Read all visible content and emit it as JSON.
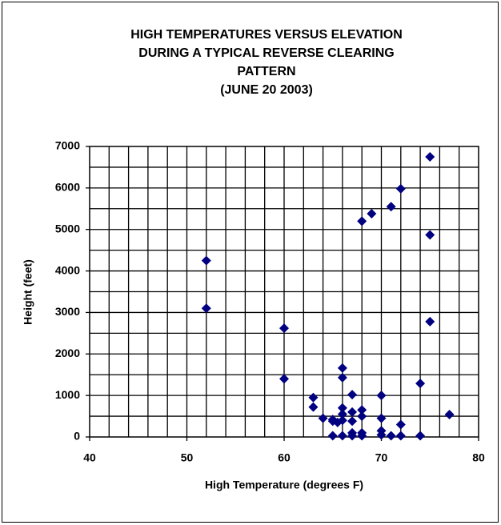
{
  "chart_data": {
    "type": "scatter",
    "title": [
      "HIGH TEMPERATURES VERSUS ELEVATION",
      "DURING A TYPICAL REVERSE CLEARING",
      "PATTERN",
      "(JUNE 20 2003)"
    ],
    "x_label": "High Temperature  (degrees F)",
    "y_label": "Height (feet)",
    "color": "#000080",
    "xlim": [
      40,
      80
    ],
    "xticks": [
      40,
      50,
      60,
      70,
      80
    ],
    "ylim": [
      0,
      7000
    ],
    "yticks": [
      0,
      1000,
      2000,
      3000,
      4000,
      5000,
      6000,
      7000
    ],
    "xgrid": [
      42,
      44,
      46,
      48,
      50,
      52,
      54,
      56,
      58,
      60,
      62,
      64,
      66,
      68,
      70,
      72,
      74,
      76,
      78
    ],
    "ygrid": [
      500,
      1000,
      1500,
      2000,
      2500,
      3000,
      3500,
      4000,
      4500,
      5000,
      5500,
      6000,
      6500
    ],
    "x": [
      52,
      52,
      60,
      60,
      63,
      63,
      64,
      65,
      65,
      65,
      65.5,
      66,
      66,
      66,
      66,
      66,
      66,
      67,
      67,
      67,
      67,
      67,
      68,
      68,
      68,
      68,
      68,
      69,
      70,
      70,
      70,
      70,
      71,
      71,
      72,
      72,
      72,
      74,
      74,
      75,
      75,
      75,
      77
    ],
    "values": [
      4250,
      3100,
      2620,
      1400,
      950,
      720,
      450,
      420,
      380,
      30,
      350,
      1660,
      1430,
      700,
      550,
      400,
      30,
      1020,
      600,
      380,
      100,
      30,
      5200,
      650,
      500,
      100,
      30,
      5380,
      1000,
      450,
      150,
      50,
      5550,
      30,
      5980,
      300,
      30,
      1290,
      30,
      6750,
      4870,
      2780,
      540
    ]
  }
}
